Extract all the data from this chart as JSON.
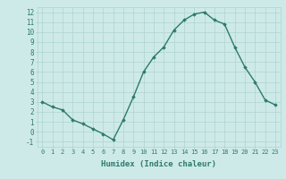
{
  "x": [
    0,
    1,
    2,
    3,
    4,
    5,
    6,
    7,
    8,
    9,
    10,
    11,
    12,
    13,
    14,
    15,
    16,
    17,
    18,
    19,
    20,
    21,
    22,
    23
  ],
  "y": [
    3.0,
    2.5,
    2.2,
    1.2,
    0.8,
    0.3,
    -0.2,
    -0.8,
    1.2,
    3.5,
    6.0,
    7.5,
    8.5,
    10.2,
    11.2,
    11.8,
    12.0,
    11.2,
    10.8,
    8.5,
    6.5,
    5.0,
    3.2,
    2.7
  ],
  "line_color": "#2d7a6e",
  "marker": "D",
  "marker_size": 1.8,
  "background_color": "#ceeae8",
  "grid_color": "#aed4d0",
  "tick_color": "#2d7a6e",
  "xlabel": "Humidex (Indice chaleur)",
  "xlabel_fontsize": 6.5,
  "ylabel_ticks": [
    -1,
    0,
    1,
    2,
    3,
    4,
    5,
    6,
    7,
    8,
    9,
    10,
    11,
    12
  ],
  "xlim": [
    -0.5,
    23.5
  ],
  "ylim": [
    -1.5,
    12.5
  ],
  "xtick_labels": [
    "0",
    "1",
    "2",
    "3",
    "4",
    "5",
    "6",
    "7",
    "8",
    "9",
    "10",
    "11",
    "12",
    "13",
    "14",
    "15",
    "16",
    "17",
    "18",
    "19",
    "20",
    "21",
    "22",
    "23"
  ],
  "line_width": 1.0,
  "tick_fontsize": 5.0,
  "ytick_fontsize": 5.5
}
